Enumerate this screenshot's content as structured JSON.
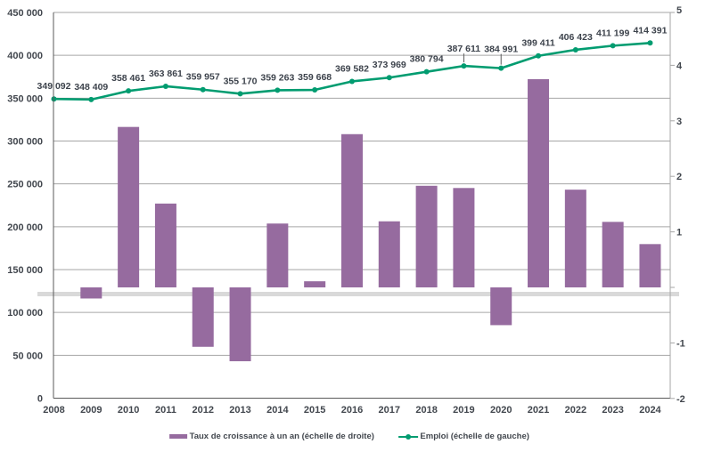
{
  "chart_data": {
    "type": "combo",
    "title": "",
    "categories": [
      "2008",
      "2009",
      "2010",
      "2011",
      "2012",
      "2013",
      "2014",
      "2015",
      "2016",
      "2017",
      "2018",
      "2019",
      "2020",
      "2021",
      "2022",
      "2023",
      "2024"
    ],
    "series": [
      {
        "name": "Taux de croissance à un an (échelle de droite)",
        "type": "bar",
        "axis": "right",
        "color": "#966B9F",
        "values": [
          null,
          -0.2,
          2.89,
          1.51,
          -1.07,
          -1.33,
          1.15,
          0.11,
          2.76,
          1.19,
          1.83,
          1.79,
          -0.68,
          3.75,
          1.76,
          1.18,
          0.78
        ]
      },
      {
        "name": "Emploi (échelle de gauche)",
        "type": "line",
        "axis": "left",
        "color": "#019C70",
        "values": [
          349092,
          348409,
          358461,
          363861,
          359957,
          355170,
          359263,
          359668,
          369582,
          373969,
          380794,
          387611,
          384991,
          399411,
          406423,
          411199,
          414391
        ],
        "data_labels": [
          "349 092",
          "348 409",
          "358 461",
          "363 861",
          "359 957",
          "355 170",
          "359 263",
          "359 668",
          "369 582",
          "373 969",
          "380 794",
          "387 611",
          "384 991",
          "399 411",
          "406 423",
          "411 199",
          "414 391"
        ]
      }
    ],
    "left_axis": {
      "min": 0,
      "max": 450000,
      "step": 50000,
      "tick_labels": [
        "0",
        "50 000",
        "100 000",
        "150 000",
        "200 000",
        "250 000",
        "300 000",
        "350 000",
        "400 000",
        "450 000"
      ]
    },
    "right_axis": {
      "min": -2,
      "max": 5,
      "ticks": [
        {
          "v": 5,
          "label": "5"
        },
        {
          "v": 4,
          "label": "4"
        },
        {
          "v": 3,
          "label": "3"
        },
        {
          "v": 2,
          "label": "2"
        },
        {
          "v": 1,
          "label": "1"
        },
        {
          "v": 0,
          "label": ""
        },
        {
          "v": -1,
          "label": "-1"
        },
        {
          "v": -2,
          "label": "-2"
        }
      ]
    },
    "grid": true,
    "zero_band_color": "#D9D9D9",
    "legend_position": "bottom"
  },
  "legend": {
    "items": [
      {
        "label": "Taux de croissance à un an (échelle de droite)",
        "color": "#966B9F",
        "marker": "rect"
      },
      {
        "label": "Emploi (échelle de gauche)",
        "color": "#019C70",
        "marker": "line-dot"
      }
    ]
  },
  "colors": {
    "grid": "#A6A6A6",
    "axis_dark": "#595959",
    "axis_light": "#A6A6A6",
    "text": "#42474E",
    "data_label": "#3D434C"
  }
}
